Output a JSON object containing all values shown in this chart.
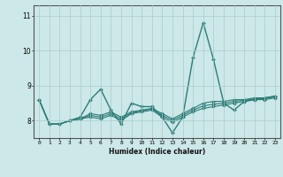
{
  "title": "",
  "xlabel": "Humidex (Indice chaleur)",
  "ylabel": "",
  "bg_color": "#cce8e8",
  "line_color": "#2d7d78",
  "grid_color": "#aacccc",
  "xlim": [
    -0.5,
    23.5
  ],
  "ylim": [
    7.5,
    11.3
  ],
  "yticks": [
    8,
    9,
    10,
    11
  ],
  "xticks": [
    0,
    1,
    2,
    3,
    4,
    5,
    6,
    7,
    8,
    9,
    10,
    11,
    12,
    13,
    14,
    15,
    16,
    17,
    18,
    19,
    20,
    21,
    22,
    23
  ],
  "series": [
    [
      8.6,
      7.9,
      7.9,
      8.0,
      8.1,
      8.6,
      8.9,
      8.3,
      7.9,
      8.5,
      8.4,
      8.4,
      8.1,
      7.65,
      8.1,
      9.8,
      10.8,
      9.75,
      8.5,
      8.3,
      8.55,
      8.6,
      8.65,
      8.7
    ],
    [
      8.6,
      7.9,
      7.9,
      8.0,
      8.05,
      8.2,
      8.15,
      8.25,
      8.1,
      8.25,
      8.3,
      8.35,
      8.2,
      8.05,
      8.2,
      8.35,
      8.5,
      8.55,
      8.55,
      8.6,
      8.6,
      8.65,
      8.65,
      8.7
    ],
    [
      8.6,
      7.9,
      7.9,
      8.0,
      8.05,
      8.15,
      8.1,
      8.2,
      8.05,
      8.22,
      8.28,
      8.33,
      8.15,
      8.0,
      8.15,
      8.3,
      8.42,
      8.47,
      8.5,
      8.55,
      8.58,
      8.62,
      8.63,
      8.68
    ],
    [
      8.6,
      7.9,
      7.9,
      8.0,
      8.05,
      8.1,
      8.05,
      8.15,
      8.0,
      8.2,
      8.25,
      8.3,
      8.1,
      7.95,
      8.1,
      8.25,
      8.35,
      8.4,
      8.45,
      8.5,
      8.55,
      8.6,
      8.6,
      8.65
    ]
  ]
}
